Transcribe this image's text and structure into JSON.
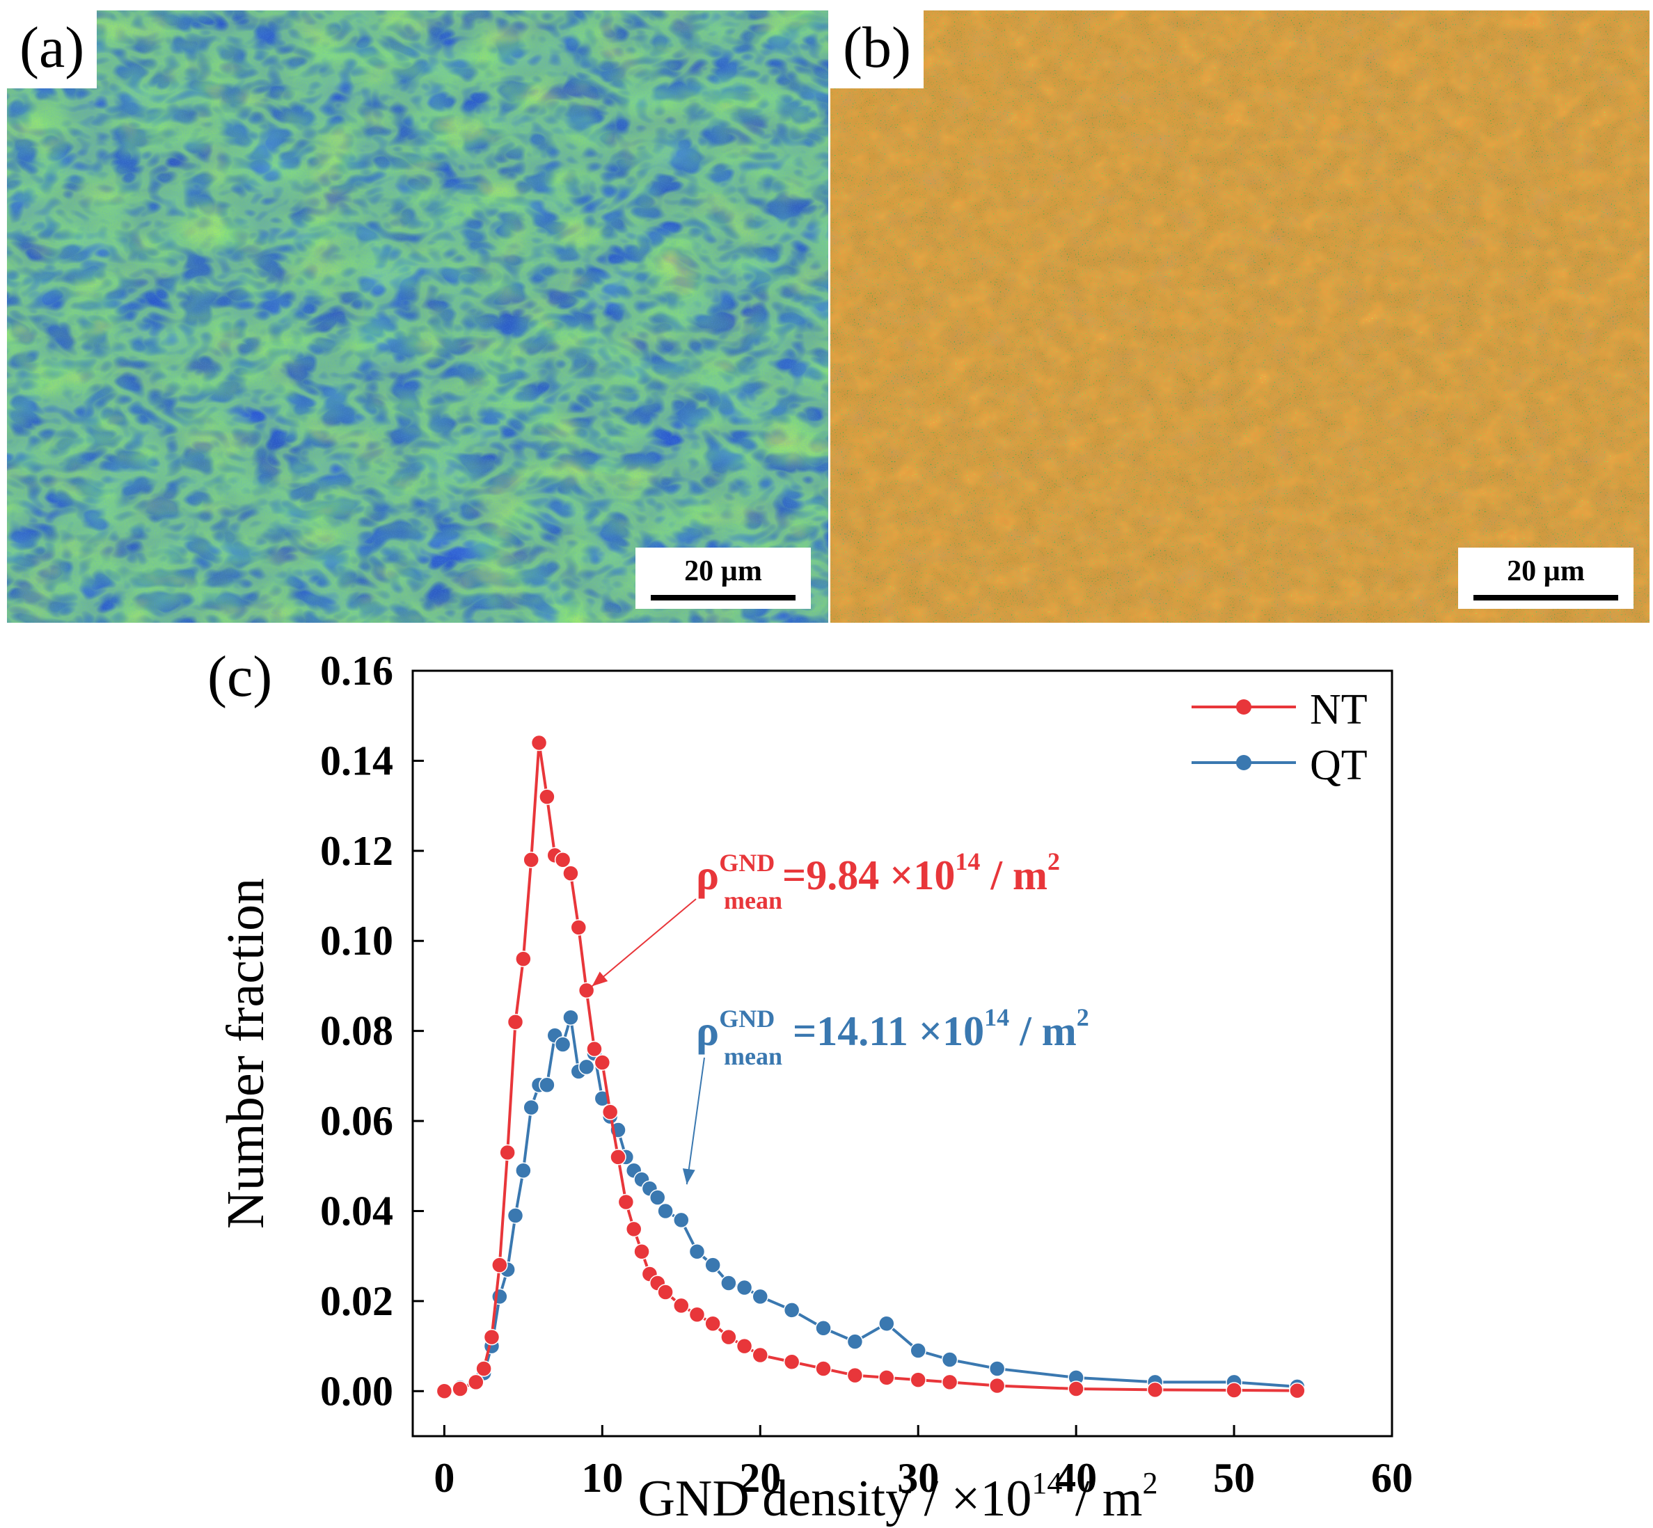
{
  "panels": [
    {
      "label": "(a)",
      "scale_bar": "20 µm",
      "map": "GND density map (NT)"
    },
    {
      "label": "(b)",
      "scale_bar": "20 µm",
      "map": "GND density map (QT)"
    }
  ],
  "colors": {
    "low": "#1a3fd6",
    "mid_low": "#2a8a4a",
    "mid": "#48c838",
    "high": "#e8f020",
    "peak": "#ff2a10",
    "nt": "#e8363a",
    "qt": "#3a78b0"
  },
  "chart_data": {
    "type": "line",
    "panel_label": "(c)",
    "xlabel": "GND density / ×10",
    "xlabel_exp": "14",
    "xlabel_unit": " / m",
    "xlabel_unit_exp": "2",
    "ylabel": "Number fraction",
    "xlim": [
      -2,
      60
    ],
    "ylim": [
      -0.01,
      0.16
    ],
    "xticks": [
      0,
      10,
      20,
      30,
      40,
      50,
      60
    ],
    "xtick_labels": [
      "0",
      "10",
      "20",
      "30",
      "40",
      "50",
      "60"
    ],
    "yticks": [
      0.0,
      0.02,
      0.04,
      0.06,
      0.08,
      0.1,
      0.12,
      0.14,
      0.16
    ],
    "ytick_labels": [
      "0.00",
      "0.02",
      "0.04",
      "0.06",
      "0.08",
      "0.10",
      "0.12",
      "0.14",
      "0.16"
    ],
    "legend": {
      "position": "top-right",
      "entries": [
        "NT",
        "QT"
      ]
    },
    "series": [
      {
        "name": "NT",
        "color": "#e8363a",
        "x": [
          0,
          1,
          2,
          2.5,
          3,
          3.5,
          4,
          4.5,
          5,
          5.5,
          6,
          6.5,
          7,
          7.5,
          8,
          8.5,
          9,
          9.5,
          10,
          10.5,
          11,
          11.5,
          12,
          12.5,
          13,
          13.5,
          14,
          15,
          16,
          17,
          18,
          19,
          20,
          22,
          24,
          26,
          28,
          30,
          32,
          35,
          40,
          45,
          50,
          54
        ],
        "y": [
          0.0,
          0.0005,
          0.002,
          0.005,
          0.012,
          0.028,
          0.053,
          0.082,
          0.096,
          0.118,
          0.144,
          0.132,
          0.119,
          0.118,
          0.115,
          0.103,
          0.089,
          0.076,
          0.073,
          0.062,
          0.052,
          0.042,
          0.036,
          0.031,
          0.026,
          0.024,
          0.022,
          0.019,
          0.017,
          0.015,
          0.012,
          0.01,
          0.008,
          0.0065,
          0.005,
          0.0035,
          0.003,
          0.0025,
          0.002,
          0.0012,
          0.0005,
          0.0003,
          0.0002,
          0.0001
        ]
      },
      {
        "name": "QT",
        "color": "#3a78b0",
        "x": [
          0,
          1,
          2,
          2.5,
          3,
          3.5,
          4,
          4.5,
          5,
          5.5,
          6,
          6.5,
          7,
          7.5,
          8,
          8.5,
          9,
          9.5,
          10,
          10.5,
          11,
          11.5,
          12,
          12.5,
          13,
          13.5,
          14,
          15,
          16,
          17,
          18,
          19,
          20,
          22,
          24,
          26,
          28,
          30,
          32,
          35,
          40,
          45,
          50,
          54
        ],
        "y": [
          0.0,
          0.0008,
          0.002,
          0.004,
          0.01,
          0.021,
          0.027,
          0.039,
          0.049,
          0.063,
          0.068,
          0.068,
          0.079,
          0.077,
          0.083,
          0.071,
          0.072,
          0.075,
          0.065,
          0.061,
          0.058,
          0.052,
          0.049,
          0.047,
          0.045,
          0.043,
          0.04,
          0.038,
          0.031,
          0.028,
          0.024,
          0.023,
          0.021,
          0.018,
          0.014,
          0.011,
          0.015,
          0.009,
          0.007,
          0.005,
          0.003,
          0.002,
          0.002,
          0.001
        ]
      }
    ],
    "annotations": [
      {
        "series": "NT",
        "prefix": "ρ",
        "sup": "GND",
        "sub": "mean",
        "value": "=9.84 ×10",
        "exp": "14",
        "unit": " / m",
        "unit_exp": "2",
        "arrow_to": [
          9,
          0.089
        ]
      },
      {
        "series": "QT",
        "prefix": "ρ",
        "sup": "GND",
        "sub": "mean",
        "value": " =14.11 ×10",
        "exp": "14",
        "unit": " / m",
        "unit_exp": "2",
        "arrow_to": [
          15,
          0.045
        ]
      }
    ]
  }
}
